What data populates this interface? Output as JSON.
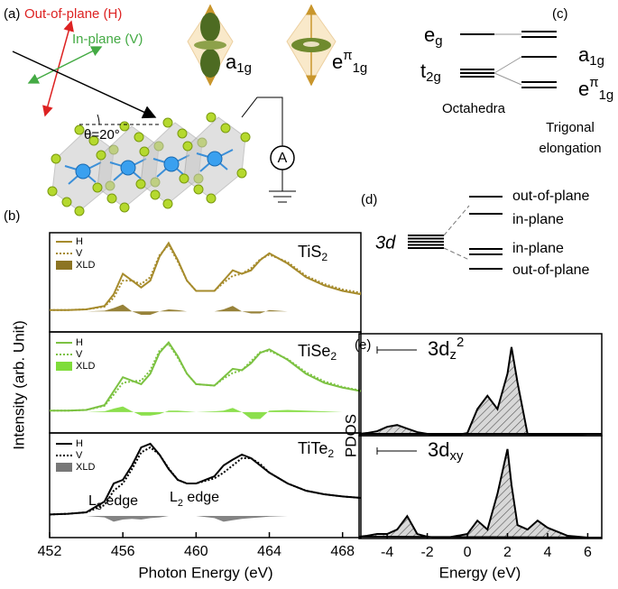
{
  "panel_a": {
    "label": "(a)",
    "out_of_plane": "Out-of-plane (H)",
    "in_plane": "In-plane (V)",
    "orbital_1": {
      "base": "a",
      "sub": "1g"
    },
    "orbital_2": {
      "base": "e",
      "sup": "π",
      "sub": "1g"
    },
    "angle": "θ=20°",
    "meter": "A"
  },
  "panel_b": {
    "label": "(b)"
  },
  "panel_c": {
    "label": "(c)",
    "left_levels": [
      {
        "base": "e",
        "sub": "g"
      },
      {
        "base": "t",
        "sub": "2g"
      }
    ],
    "right_levels": [
      {
        "base": "a",
        "sub": "1g"
      },
      {
        "base": "e",
        "sup": "π",
        "sub": "1g"
      }
    ],
    "left_caption": "Octahedra",
    "right_caption": [
      "Trigonal",
      "elongation"
    ]
  },
  "panel_d": {
    "label": "(d)",
    "center": "3d",
    "levels": [
      "out-of-plane",
      "in-plane",
      "in-plane",
      "out-of-plane"
    ]
  },
  "panel_e": {
    "label": "(e)"
  },
  "chart_data": [
    {
      "type": "line",
      "title": {
        "base": "TiS",
        "sub": "2"
      },
      "xlim": [
        452,
        469
      ],
      "ylim": [
        -0.3,
        1.15
      ],
      "x": [
        452,
        453,
        454,
        455,
        455.5,
        456,
        456.5,
        457,
        457.5,
        458,
        458.5,
        459,
        459.5,
        460,
        461,
        461.5,
        462,
        462.5,
        463,
        463.5,
        464,
        465,
        466,
        467,
        468,
        469
      ],
      "series": [
        {
          "name": "H",
          "color": "#a68b2c",
          "style": "solid",
          "values": [
            0.02,
            0.02,
            0.03,
            0.08,
            0.25,
            0.55,
            0.45,
            0.35,
            0.45,
            0.8,
            1.0,
            0.75,
            0.45,
            0.3,
            0.3,
            0.45,
            0.6,
            0.55,
            0.6,
            0.75,
            0.85,
            0.7,
            0.5,
            0.38,
            0.3,
            0.25
          ]
        },
        {
          "name": "V",
          "color": "#a68b2c",
          "style": "dotted",
          "values": [
            0.02,
            0.02,
            0.03,
            0.07,
            0.2,
            0.45,
            0.45,
            0.4,
            0.5,
            0.82,
            0.97,
            0.73,
            0.45,
            0.3,
            0.3,
            0.42,
            0.52,
            0.55,
            0.63,
            0.76,
            0.83,
            0.72,
            0.52,
            0.4,
            0.32,
            0.27
          ]
        },
        {
          "name": "XLD",
          "color": "#8c7423",
          "style": "filled",
          "values": [
            0,
            0,
            0,
            0.01,
            0.05,
            0.1,
            0,
            -0.05,
            -0.05,
            0,
            0.03,
            0.02,
            0,
            0,
            0,
            0.03,
            0.08,
            0,
            -0.03,
            -0.03,
            0.02,
            0,
            0,
            0,
            0,
            0
          ]
        }
      ]
    },
    {
      "type": "line",
      "title": {
        "base": "TiSe",
        "sub": "2"
      },
      "ylabel": "Intensity (arb. Unit)",
      "xlim": [
        452,
        469
      ],
      "ylim": [
        -0.3,
        1.15
      ],
      "x": [
        452,
        453,
        454,
        455,
        455.5,
        456,
        456.5,
        457,
        457.5,
        458,
        458.5,
        459,
        459.5,
        460,
        461,
        461.5,
        462,
        462.5,
        463,
        463.5,
        464,
        465,
        466,
        467,
        468,
        469
      ],
      "series": [
        {
          "name": "H",
          "color": "#7cc242",
          "style": "solid",
          "values": [
            0.02,
            0.02,
            0.03,
            0.1,
            0.3,
            0.5,
            0.45,
            0.4,
            0.55,
            0.85,
            1.0,
            0.8,
            0.55,
            0.4,
            0.38,
            0.5,
            0.62,
            0.6,
            0.7,
            0.85,
            0.9,
            0.75,
            0.55,
            0.42,
            0.35,
            0.3
          ]
        },
        {
          "name": "V",
          "color": "#7cc242",
          "style": "dotted",
          "values": [
            0.02,
            0.02,
            0.03,
            0.09,
            0.25,
            0.42,
            0.44,
            0.45,
            0.6,
            0.88,
            0.98,
            0.78,
            0.55,
            0.4,
            0.38,
            0.48,
            0.56,
            0.6,
            0.73,
            0.86,
            0.88,
            0.76,
            0.57,
            0.44,
            0.36,
            0.31
          ]
        },
        {
          "name": "XLD",
          "color": "#7fdc3a",
          "style": "filled",
          "values": [
            0,
            0,
            0,
            0.01,
            0.05,
            0.08,
            0.01,
            -0.05,
            -0.05,
            -0.03,
            0.02,
            0.02,
            0.01,
            0,
            0.01,
            0.02,
            0.06,
            0,
            -0.1,
            -0.1,
            0.02,
            0.03,
            0.02,
            0.01,
            0,
            0
          ]
        }
      ]
    },
    {
      "type": "line",
      "title": {
        "base": "TiTe",
        "sub": "2"
      },
      "xlabel": "Photon Energy (eV)",
      "xlim": [
        452,
        469
      ],
      "ylim": [
        -0.3,
        1.15
      ],
      "xticks": [
        452,
        456,
        460,
        464,
        468
      ],
      "annotations": [
        {
          "base": "L",
          "sub": "3",
          "tail": " edge"
        },
        {
          "base": "L",
          "sub": "2",
          "tail": " edge"
        }
      ],
      "x": [
        452,
        453,
        454,
        455,
        455.5,
        456,
        456.5,
        457,
        457.5,
        458,
        458.5,
        459,
        459.5,
        460,
        461,
        461.5,
        462,
        462.5,
        463,
        463.5,
        464,
        465,
        466,
        467,
        468,
        469
      ],
      "series": [
        {
          "name": "H",
          "color": "#000000",
          "style": "solid",
          "values": [
            0.02,
            0.03,
            0.05,
            0.2,
            0.45,
            0.5,
            0.7,
            0.95,
            1.0,
            0.85,
            0.65,
            0.5,
            0.45,
            0.45,
            0.55,
            0.7,
            0.78,
            0.85,
            0.8,
            0.7,
            0.6,
            0.45,
            0.35,
            0.3,
            0.27,
            0.25
          ]
        },
        {
          "name": "V",
          "color": "#000000",
          "style": "dotted",
          "values": [
            0.02,
            0.03,
            0.05,
            0.15,
            0.35,
            0.45,
            0.65,
            0.88,
            0.95,
            0.85,
            0.66,
            0.5,
            0.45,
            0.45,
            0.52,
            0.6,
            0.7,
            0.8,
            0.8,
            0.72,
            0.6,
            0.45,
            0.35,
            0.3,
            0.27,
            0.25
          ]
        },
        {
          "name": "XLD",
          "color": "#777777",
          "style": "filled",
          "values": [
            0,
            0,
            0,
            -0.02,
            -0.08,
            -0.05,
            -0.04,
            -0.05,
            -0.03,
            -0.02,
            0,
            0,
            0,
            0,
            -0.03,
            -0.08,
            -0.06,
            -0.04,
            -0.03,
            -0.02,
            -0.01,
            0,
            0,
            0,
            0,
            0
          ]
        }
      ]
    },
    {
      "type": "area",
      "title": {
        "base": "3d",
        "sub": "z",
        "sup": "2"
      },
      "xlim": [
        -5.4,
        6.7
      ],
      "ylim": [
        0,
        1.15
      ],
      "x": [
        -5.4,
        -5,
        -4.5,
        -4,
        -3.5,
        -3,
        -2.5,
        -2,
        -1.5,
        -1,
        -0.5,
        0,
        0.5,
        1,
        1.5,
        2,
        2.2,
        2.5,
        3,
        3.5,
        4,
        5,
        6,
        6.7
      ],
      "series": [
        {
          "color": "#000000",
          "style": "hatched",
          "values": [
            0.02,
            0.03,
            0.05,
            0.1,
            0.12,
            0.08,
            0.04,
            0.02,
            0.01,
            0.01,
            0.01,
            0.03,
            0.3,
            0.45,
            0.3,
            0.7,
            1.0,
            0.6,
            0.02,
            0.01,
            0.01,
            0.01,
            0.02,
            0.02
          ]
        }
      ]
    },
    {
      "type": "area",
      "title": {
        "base": "3d",
        "sub": "xy"
      },
      "ylabel": "PDOS",
      "xlabel": "Energy (eV)",
      "xlim": [
        -5.4,
        6.7
      ],
      "ylim": [
        0,
        1.15
      ],
      "xticks": [
        -4,
        -2,
        0,
        2,
        4,
        6
      ],
      "x": [
        -5.4,
        -5,
        -4.5,
        -4,
        -3.5,
        -3,
        -2.5,
        -2,
        -1.5,
        -1,
        -0.5,
        0,
        0.5,
        1,
        1.5,
        2,
        2.2,
        2.5,
        3,
        3.5,
        4,
        5,
        6,
        6.7
      ],
      "series": [
        {
          "color": "#000000",
          "style": "hatched",
          "values": [
            0.02,
            0.03,
            0.05,
            0.05,
            0.1,
            0.25,
            0.05,
            0.02,
            0.01,
            0.01,
            0.03,
            0.05,
            0.2,
            0.1,
            0.5,
            1.0,
            0.6,
            0.15,
            0.1,
            0.2,
            0.12,
            0.03,
            0.01,
            0.01
          ]
        }
      ]
    }
  ]
}
